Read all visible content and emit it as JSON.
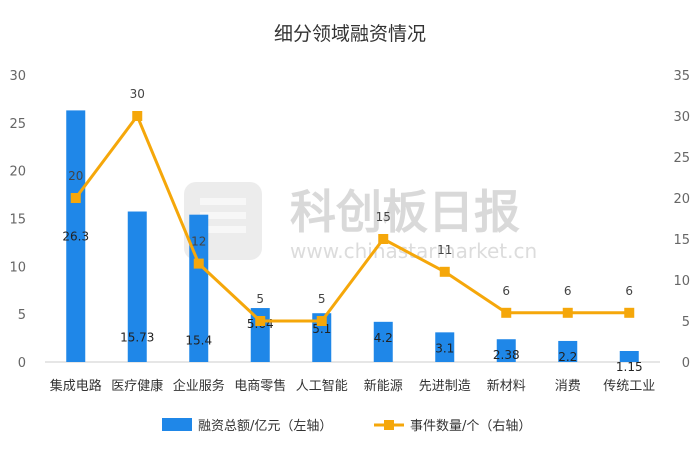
{
  "chart_data": {
    "type": "bar",
    "title": "细分领域融资情况",
    "categories": [
      "集成电路",
      "医疗健康",
      "企业服务",
      "电商零售",
      "人工智能",
      "新能源",
      "先进制造",
      "新材料",
      "消费",
      "传统工业"
    ],
    "series": [
      {
        "name": "融资总额/亿元（左轴）",
        "type": "bar",
        "axis": "left",
        "color": "#1f87e8",
        "values": [
          26.3,
          15.73,
          15.4,
          5.64,
          5.1,
          4.2,
          3.1,
          2.38,
          2.2,
          1.15
        ],
        "labels": [
          "26.3",
          "15.73",
          "15.4",
          "5.64",
          "5.1",
          "4.2",
          "3.1",
          "2.38",
          "2.2",
          "1.15"
        ]
      },
      {
        "name": "事件数量/个（右轴）",
        "type": "line",
        "axis": "right",
        "color": "#f5a70a",
        "values": [
          20,
          30,
          12,
          5,
          5,
          15,
          11,
          6,
          6,
          6
        ],
        "labels": [
          "20",
          "30",
          "12",
          "5",
          "5",
          "15",
          "11",
          "6",
          "6",
          "6"
        ]
      }
    ],
    "y_left": {
      "ylim": [
        0,
        30
      ],
      "ticks": [
        "0",
        "5",
        "10",
        "15",
        "20",
        "25",
        "30"
      ]
    },
    "y_right": {
      "ylim": [
        0,
        35
      ],
      "ticks": [
        "0",
        "5",
        "10",
        "15",
        "20",
        "25",
        "30",
        "35"
      ]
    },
    "grid": false,
    "legend_position": "bottom"
  },
  "watermark": {
    "name": "科创板日报",
    "url": "www.chinastarmarket.cn"
  }
}
